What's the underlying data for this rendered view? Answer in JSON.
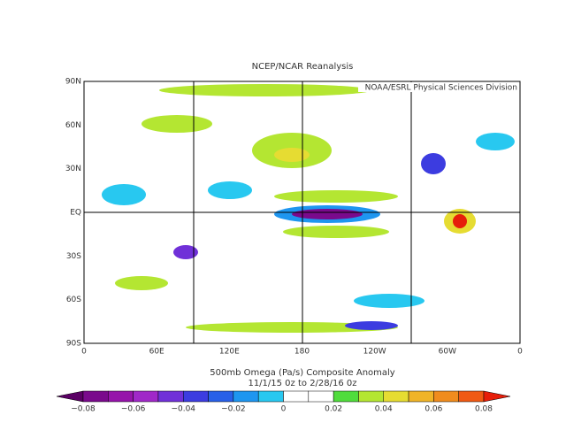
{
  "map": {
    "title": "NCEP/NCAR Reanalysis",
    "attribution": "NOAA/ESRL Physical Sciences Division",
    "lat_labels": [
      "90N",
      "60N",
      "30N",
      "EQ",
      "30S",
      "60S",
      "90S"
    ],
    "lon_labels": [
      "0",
      "60E",
      "120E",
      "180",
      "120W",
      "60W",
      "0"
    ],
    "caption": [
      "500mb Omega (Pa/s)   Composite Anomaly",
      "11/1/15 0z  to 2/28/16 0z"
    ]
  },
  "colorbar": {
    "ticks": [
      "−0.08",
      "−0.06",
      "−0.04",
      "−0.02",
      "0",
      "0.02",
      "0.04",
      "0.06",
      "0.08"
    ],
    "colors": [
      "#5a0064",
      "#7a0a8c",
      "#9614aa",
      "#a028c8",
      "#7030d8",
      "#3c3ce0",
      "#2860e8",
      "#1e96f0",
      "#28c8f0",
      "#ffffff",
      "#ffffff",
      "#50dc3c",
      "#b4e632",
      "#e6dc32",
      "#f0b428",
      "#f08c1e",
      "#f05a14",
      "#e61e0a"
    ]
  }
}
